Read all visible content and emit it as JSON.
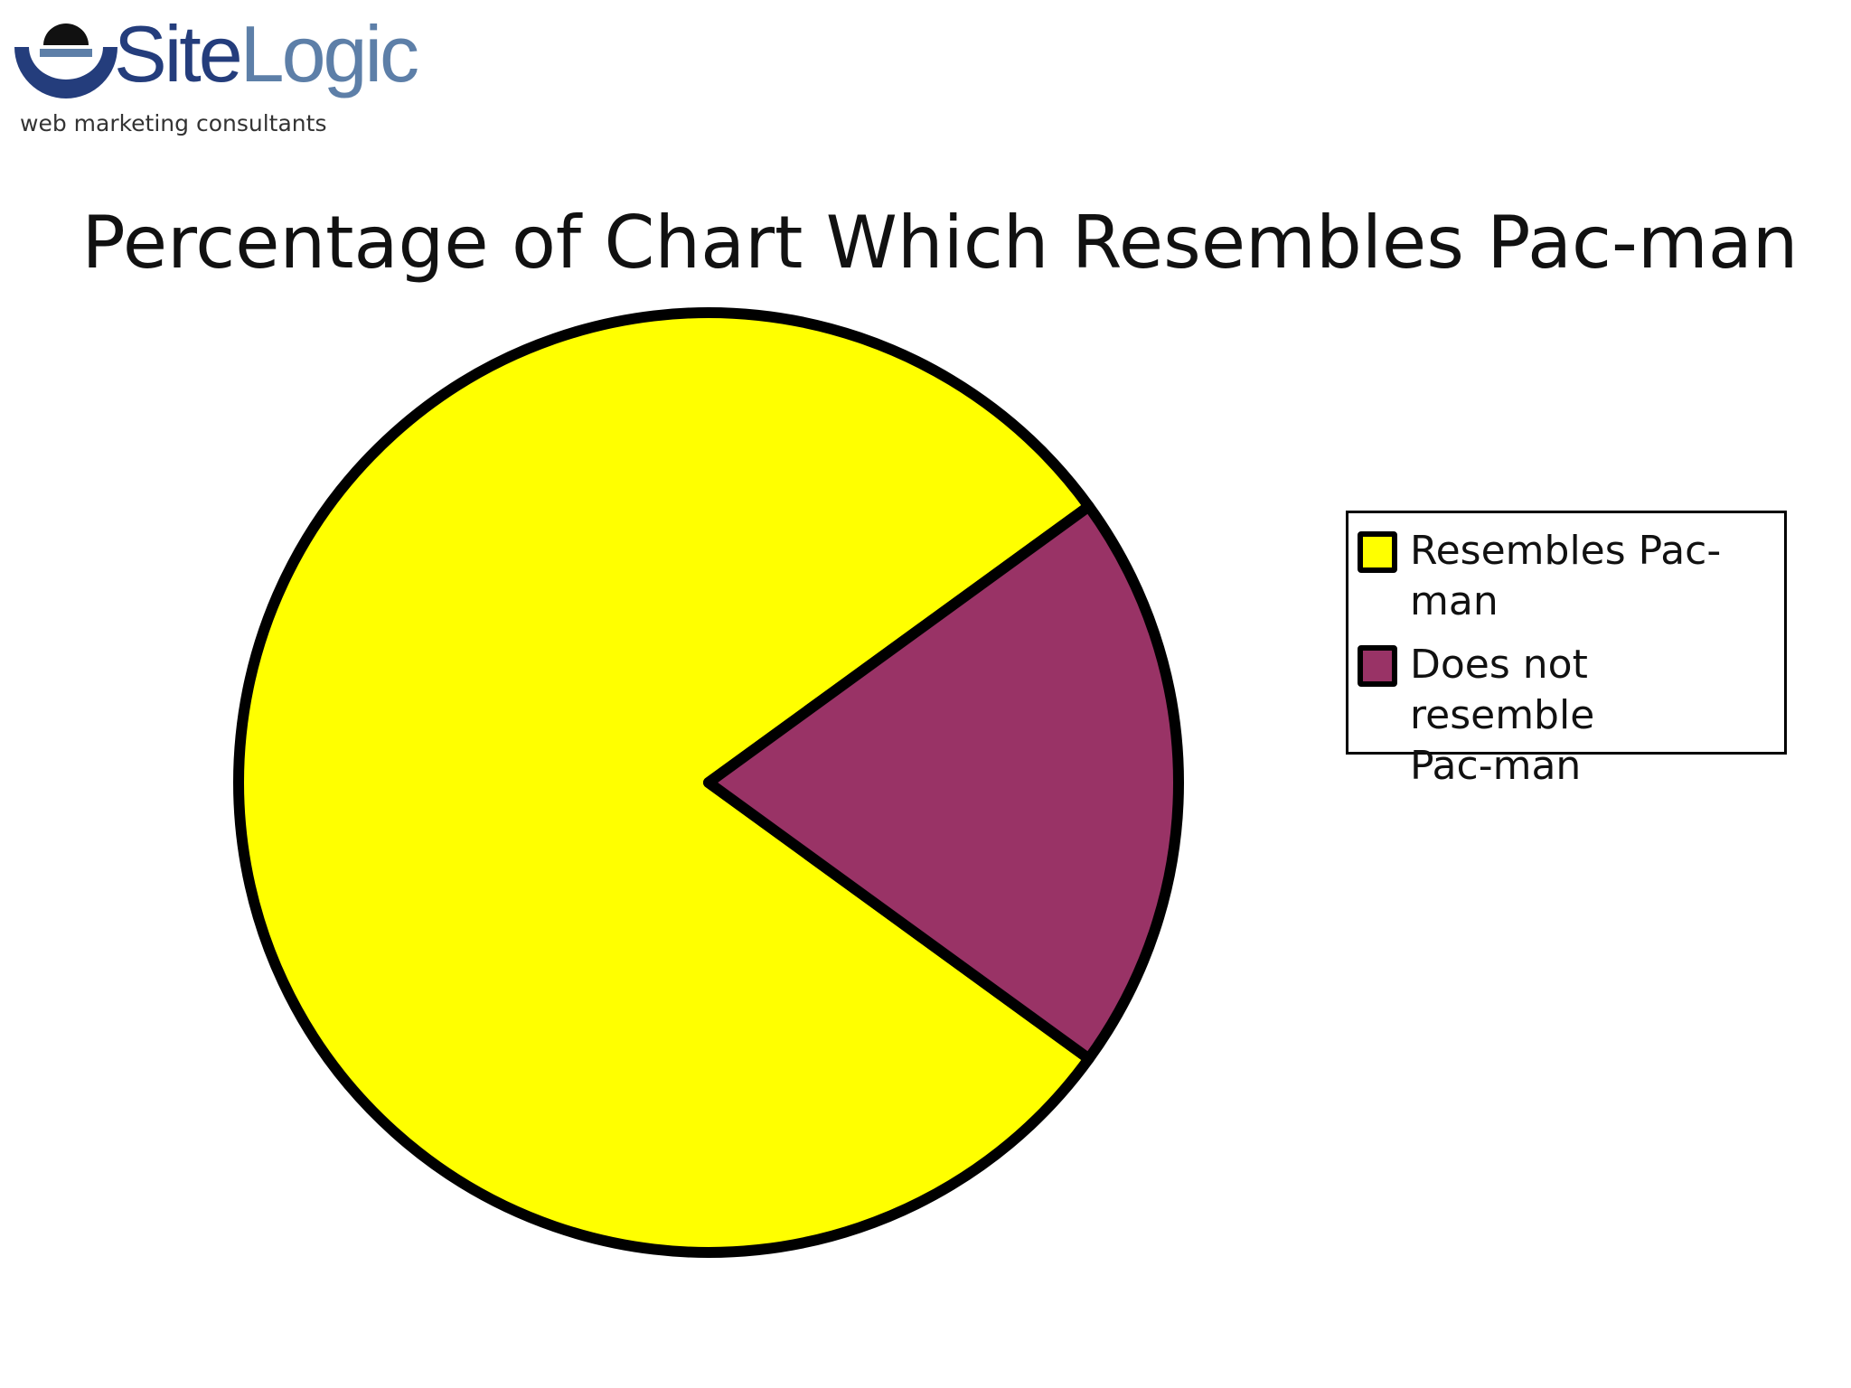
{
  "logo": {
    "brand_part1": "Site",
    "brand_part2": "Logic",
    "tagline": "web marketing consultants"
  },
  "chart_data": {
    "type": "pie",
    "title": "Percentage of Chart Which Resembles Pac-man",
    "slices": [
      {
        "label": "Resembles Pac-\nman",
        "value": 80,
        "color": "#ffff00"
      },
      {
        "label": "Does not resemble\nPac-man",
        "value": 20,
        "color": "#993366"
      }
    ],
    "legend_position": "right",
    "outline_color": "#000000"
  }
}
